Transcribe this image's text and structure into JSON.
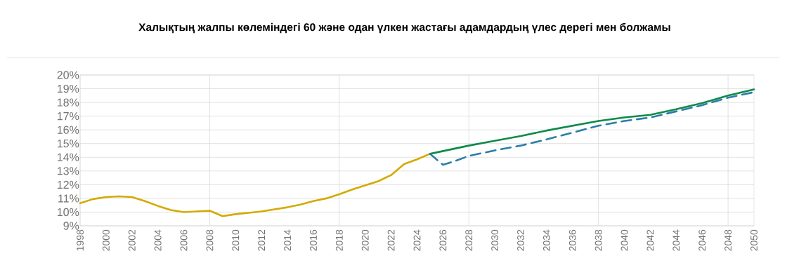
{
  "chart_data": {
    "type": "line",
    "title": "Халықтың жалпы көлеміндегі 60 және одан үлкен жастағы адамдардың үлес дерегі мен болжамы",
    "xlim": [
      1998,
      2050
    ],
    "xticks": [
      1998,
      2000,
      2002,
      2004,
      2006,
      2008,
      2010,
      2012,
      2014,
      2016,
      2018,
      2020,
      2022,
      2024,
      2026,
      2028,
      2030,
      2032,
      2034,
      2036,
      2038,
      2040,
      2042,
      2044,
      2046,
      2048,
      2050
    ],
    "ylim": [
      9,
      20
    ],
    "yticks": [
      {
        "value": 9,
        "label": "9%"
      },
      {
        "value": 10,
        "label": "10%"
      },
      {
        "value": 11,
        "label": "11%"
      },
      {
        "value": 12,
        "label": "12%"
      },
      {
        "value": 13,
        "label": "13%"
      },
      {
        "value": 14,
        "label": "14%"
      },
      {
        "value": 15,
        "label": "15%"
      },
      {
        "value": 16,
        "label": "16%"
      },
      {
        "value": 17,
        "label": "17%"
      },
      {
        "value": 18,
        "label": "18%"
      },
      {
        "value": 19,
        "label": "19%"
      },
      {
        "value": 20,
        "label": "20%"
      }
    ],
    "grid": true,
    "marker": "none",
    "series": [
      {
        "color": "#d4aa00",
        "line_style": "solid",
        "x": [
          1998,
          1999,
          2000,
          2001,
          2002,
          2003,
          2004,
          2005,
          2006,
          2007,
          2008,
          2009,
          2010,
          2011,
          2012,
          2013,
          2014,
          2015,
          2016,
          2017,
          2018,
          2019,
          2020,
          2021,
          2022,
          2023,
          2024,
          2025
        ],
        "values": [
          10.65,
          10.95,
          11.1,
          11.15,
          11.1,
          10.8,
          10.45,
          10.15,
          10.0,
          10.05,
          10.1,
          9.7,
          9.85,
          9.95,
          10.05,
          10.2,
          10.35,
          10.55,
          10.8,
          11.0,
          11.3,
          11.65,
          11.95,
          12.25,
          12.7,
          13.5,
          13.85,
          14.25
        ]
      },
      {
        "color": "#0e8a4a",
        "line_style": "solid",
        "x": [
          2025,
          2028,
          2030,
          2032,
          2034,
          2036,
          2038,
          2040,
          2042,
          2044,
          2046,
          2048,
          2050
        ],
        "values": [
          14.25,
          14.85,
          15.2,
          15.55,
          15.95,
          16.3,
          16.65,
          16.9,
          17.1,
          17.5,
          17.95,
          18.5,
          18.95
        ]
      },
      {
        "color": "#2a7ea8",
        "line_style": "dashed",
        "x": [
          2025,
          2026,
          2027,
          2028,
          2030,
          2032,
          2034,
          2036,
          2038,
          2040,
          2042,
          2044,
          2046,
          2048,
          2050
        ],
        "values": [
          14.25,
          13.45,
          13.75,
          14.1,
          14.5,
          14.85,
          15.3,
          15.8,
          16.3,
          16.65,
          16.9,
          17.35,
          17.8,
          18.35,
          18.75
        ]
      }
    ]
  }
}
